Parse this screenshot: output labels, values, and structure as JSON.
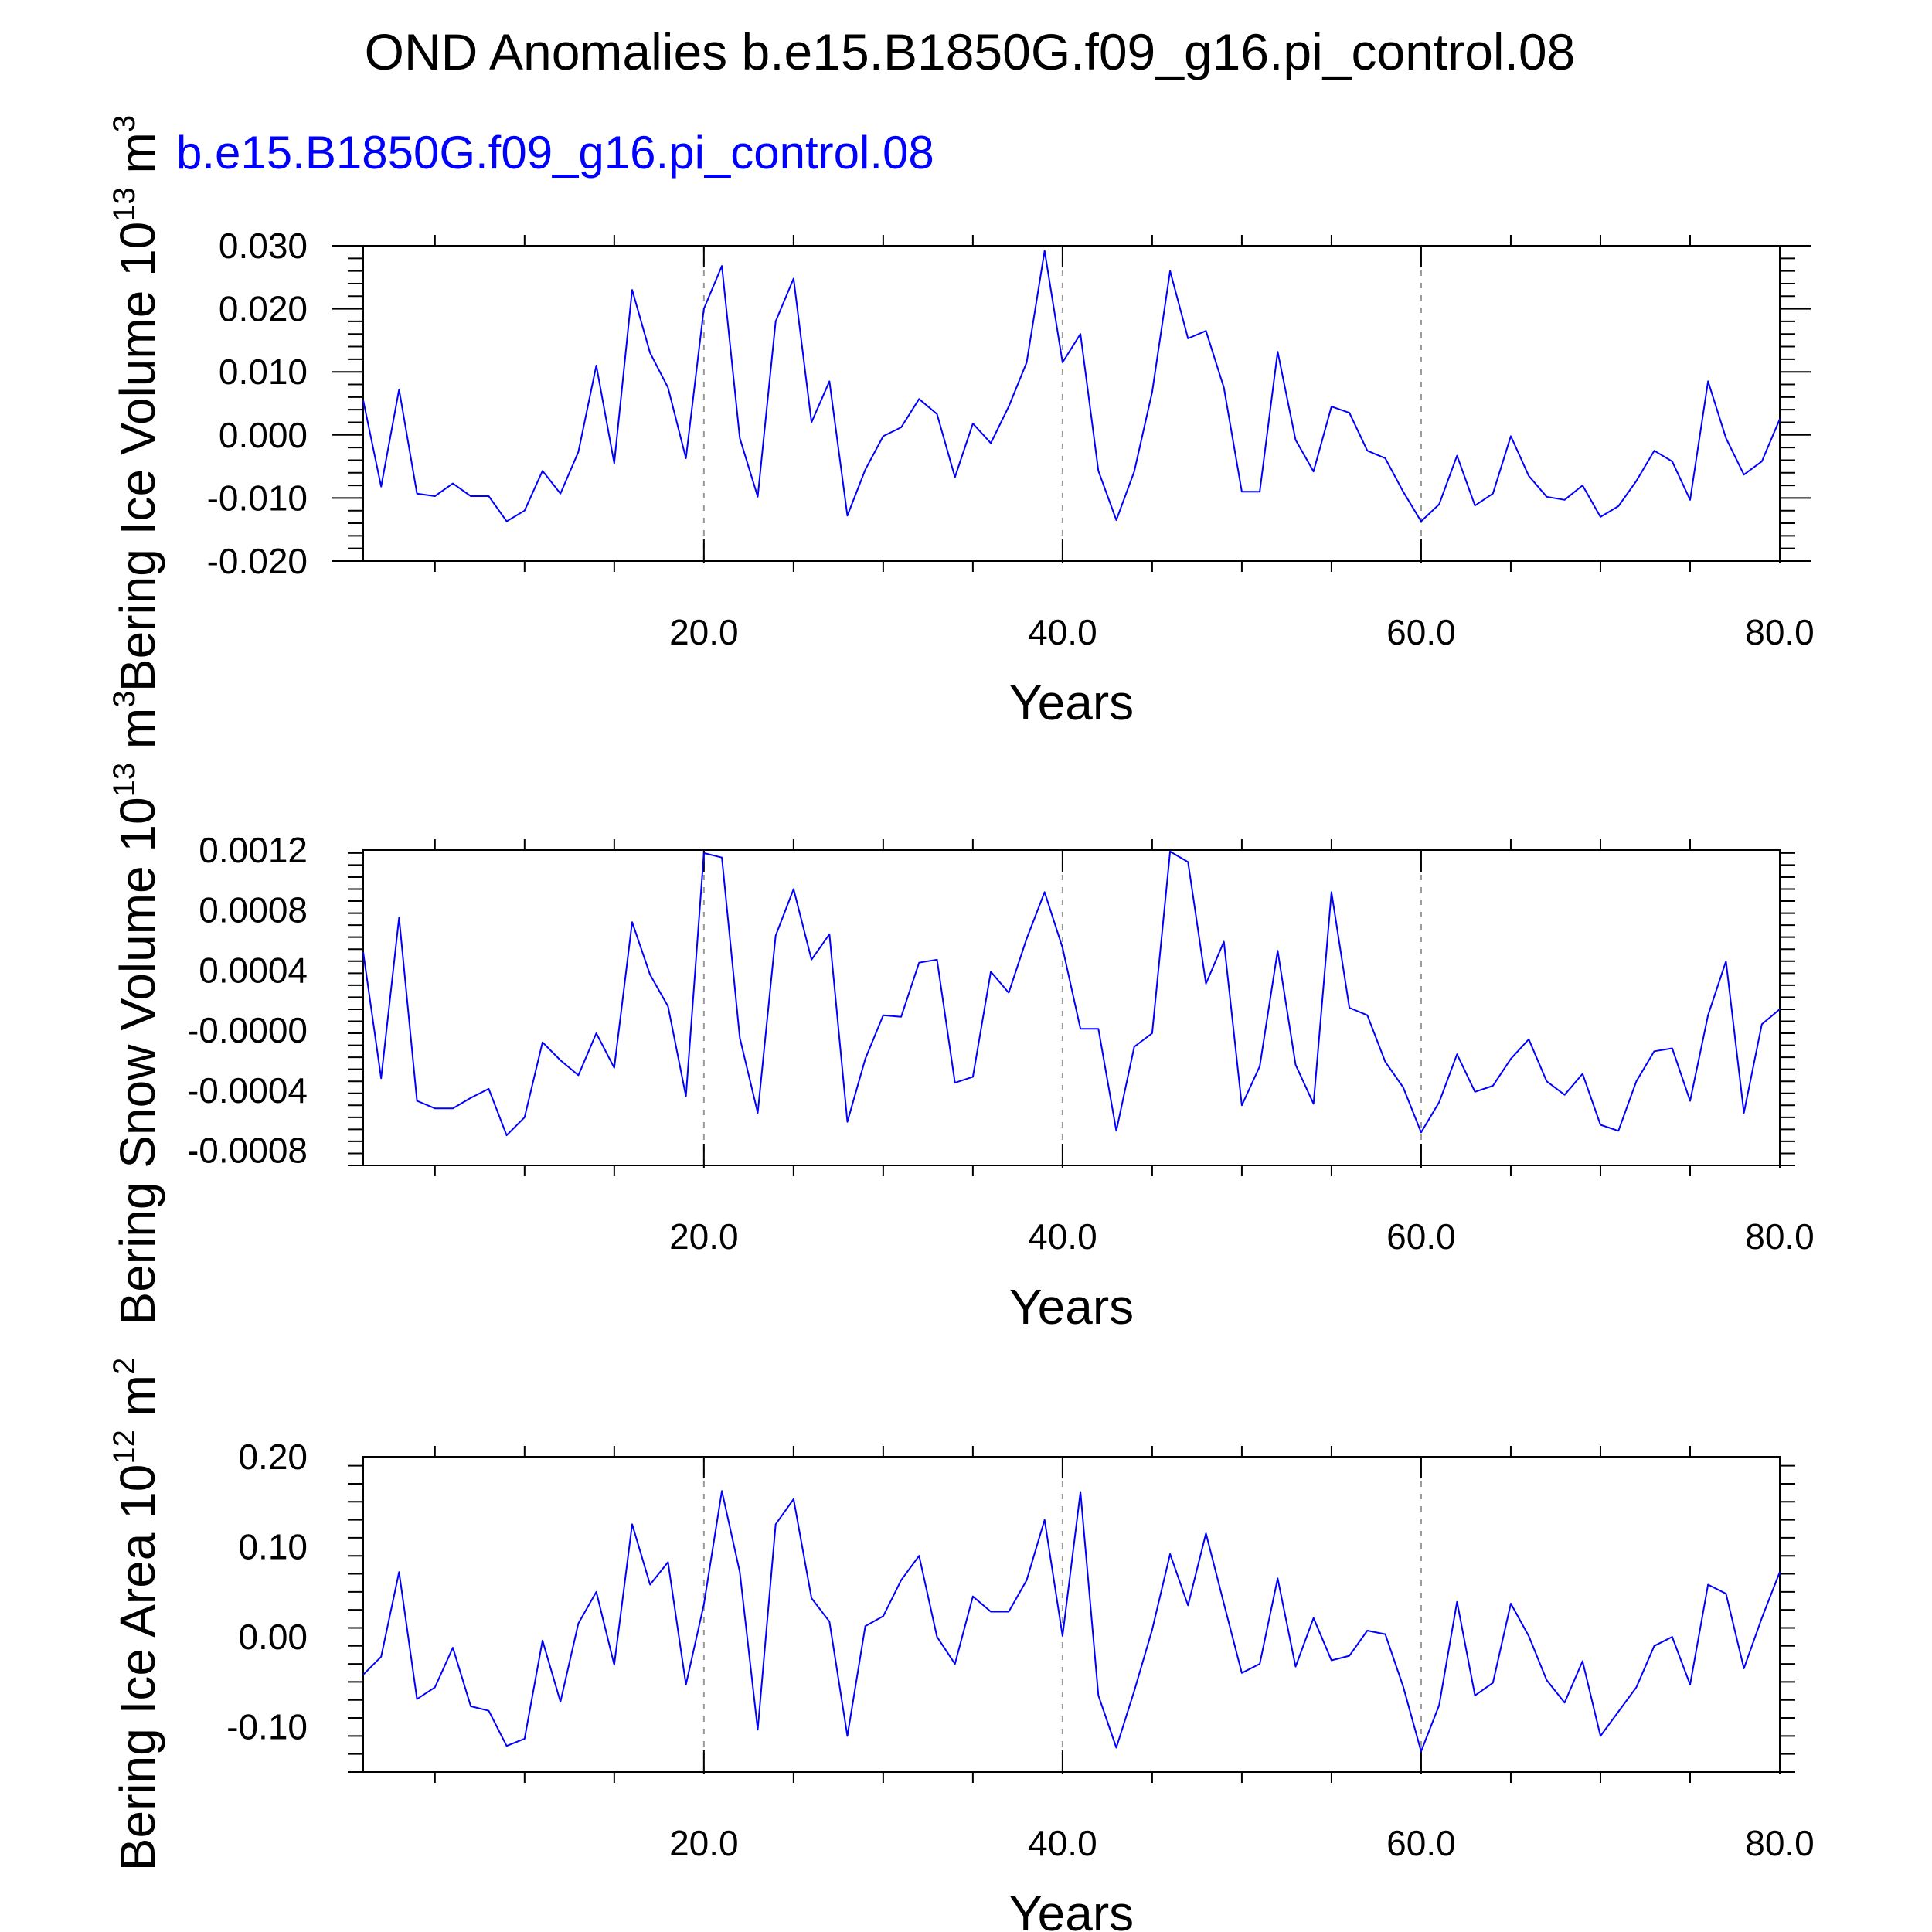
{
  "title": "OND Anomalies b.e15.B1850G.f09_g16.pi_control.08",
  "subtitle": "b.e15.B1850G.f09_g16.pi_control.08",
  "colors": {
    "series": "#0000ff",
    "axis": "#000000",
    "grid": "#999999",
    "subtitle": "#0000ff"
  },
  "chart_data": [
    {
      "type": "line",
      "title": "",
      "ylabel": "Bering Ice Volume 10",
      "ylabel_exp": "13",
      "ylabel_unit": " m",
      "ylabel_unit_exp": "3",
      "xlabel": "Years",
      "xlim": [
        1,
        80
      ],
      "ylim": [
        -0.02,
        0.03
      ],
      "xticks": [
        20,
        40,
        60,
        80
      ],
      "xtick_labels": [
        "20.0",
        "40.0",
        "60.0",
        "80.0"
      ],
      "yticks": [
        -0.02,
        -0.01,
        0.0,
        0.01,
        0.02,
        0.03
      ],
      "ytick_labels": [
        "-0.020",
        "-0.010",
        "0.000",
        "0.010",
        "0.020",
        "0.030"
      ],
      "grid_x": [
        20,
        40,
        60
      ],
      "x": [
        1,
        2,
        3,
        4,
        5,
        6,
        7,
        8,
        9,
        10,
        11,
        12,
        13,
        14,
        15,
        16,
        17,
        18,
        19,
        20,
        21,
        22,
        23,
        24,
        25,
        26,
        27,
        28,
        29,
        30,
        31,
        32,
        33,
        34,
        35,
        36,
        37,
        38,
        39,
        40,
        41,
        42,
        43,
        44,
        45,
        46,
        47,
        48,
        49,
        50,
        51,
        52,
        53,
        54,
        55,
        56,
        57,
        58,
        59,
        60,
        61,
        62,
        63,
        64,
        65,
        66,
        67,
        68,
        69,
        70,
        71,
        72,
        73,
        74,
        75,
        76,
        77,
        78,
        79,
        80
      ],
      "series": [
        {
          "values": [
            0.0055,
            -0.0082,
            0.0072,
            -0.0093,
            -0.0097,
            -0.0077,
            -0.0097,
            -0.0097,
            -0.0137,
            -0.012,
            -0.0057,
            -0.0093,
            -0.0027,
            0.011,
            -0.0045,
            0.023,
            0.013,
            0.0075,
            -0.0037,
            0.02,
            0.0268,
            -0.0005,
            -0.0098,
            0.018,
            0.0248,
            0.002,
            0.0085,
            -0.0128,
            -0.0055,
            -0.0002,
            0.0012,
            0.0057,
            0.0033,
            -0.0067,
            0.0018,
            -0.0013,
            0.0045,
            0.0115,
            0.0292,
            0.0115,
            0.016,
            -0.0057,
            -0.0135,
            -0.0058,
            0.0068,
            0.026,
            0.0153,
            0.0165,
            0.0075,
            -0.009,
            -0.009,
            0.0132,
            -0.0008,
            -0.0058,
            0.0045,
            0.0035,
            -0.0025,
            -0.0037,
            -0.009,
            -0.0137,
            -0.011,
            -0.0033,
            -0.0112,
            -0.0093,
            -0.0002,
            -0.0065,
            -0.0098,
            -0.0103,
            -0.008,
            -0.013,
            -0.0113,
            -0.0073,
            -0.0025,
            -0.0042,
            -0.0103,
            0.0085,
            -0.0005,
            -0.0063,
            -0.0042,
            0.0025
          ]
        }
      ]
    },
    {
      "type": "line",
      "title": "",
      "ylabel": "Bering Snow Volume 10",
      "ylabel_exp": "13",
      "ylabel_unit": " m",
      "ylabel_unit_exp": "3",
      "xlabel": "Years",
      "xlim": [
        1,
        80
      ],
      "ylim": [
        -0.0009,
        0.0012
      ],
      "xticks": [
        20,
        40,
        60,
        80
      ],
      "xtick_labels": [
        "20.0",
        "40.0",
        "60.0",
        "80.0"
      ],
      "yticks": [
        -0.0008,
        -0.0004,
        0.0,
        0.0004,
        0.0008,
        0.0012
      ],
      "ytick_labels": [
        "-0.0008",
        "-0.0004",
        "-0.0000",
        "0.0004",
        "0.0008",
        "0.0012"
      ],
      "grid_x": [
        20,
        40,
        60
      ],
      "x": [
        1,
        2,
        3,
        4,
        5,
        6,
        7,
        8,
        9,
        10,
        11,
        12,
        13,
        14,
        15,
        16,
        17,
        18,
        19,
        20,
        21,
        22,
        23,
        24,
        25,
        26,
        27,
        28,
        29,
        30,
        31,
        32,
        33,
        34,
        35,
        36,
        37,
        38,
        39,
        40,
        41,
        42,
        43,
        44,
        45,
        46,
        47,
        48,
        49,
        50,
        51,
        52,
        53,
        54,
        55,
        56,
        57,
        58,
        59,
        60,
        61,
        62,
        63,
        64,
        65,
        66,
        67,
        68,
        69,
        70,
        71,
        72,
        73,
        74,
        75,
        76,
        77,
        78,
        79,
        80
      ],
      "series": [
        {
          "values": [
            0.00052,
            -0.00032,
            0.00075,
            -0.00047,
            -0.00052,
            -0.00052,
            -0.00045,
            -0.00039,
            -0.0007,
            -0.00058,
            -8e-05,
            -0.0002,
            -0.0003,
            -2e-05,
            -0.00025,
            0.00072,
            0.00037,
            0.00016,
            -0.00044,
            0.00118,
            0.00115,
            -5e-05,
            -0.00055,
            0.00063,
            0.00094,
            0.00047,
            0.00064,
            -0.00061,
            -0.00019,
            0.0001,
            9e-05,
            0.00045,
            0.00047,
            -0.00035,
            -0.00031,
            0.00039,
            0.00025,
            0.00061,
            0.00092,
            0.00055,
            1e-05,
            1e-05,
            -0.00067,
            -0.00011,
            -2e-05,
            0.00119,
            0.00112,
            0.00031,
            0.00059,
            -0.0005,
            -0.00024,
            0.00053,
            -0.00023,
            -0.00049,
            0.00092,
            0.00015,
            0.0001,
            -0.00021,
            -0.00038,
            -0.00068,
            -0.00048,
            -0.00016,
            -0.00041,
            -0.00037,
            -0.00019,
            -6e-05,
            -0.00034,
            -0.00043,
            -0.00029,
            -0.00063,
            -0.00067,
            -0.00034,
            -0.00014,
            -0.00012,
            -0.00047,
            0.0001,
            0.00046,
            -0.00055,
            4e-05,
            0.00014
          ]
        }
      ]
    },
    {
      "type": "line",
      "title": "",
      "ylabel": "Bering Ice Area 10",
      "ylabel_exp": "12",
      "ylabel_unit": " m",
      "ylabel_unit_exp": "2",
      "xlabel": "Years",
      "xlim": [
        1,
        80
      ],
      "ylim": [
        -0.15,
        0.2
      ],
      "xticks": [
        20,
        40,
        60,
        80
      ],
      "xtick_labels": [
        "20.0",
        "40.0",
        "60.0",
        "80.0"
      ],
      "yticks": [
        -0.1,
        0.0,
        0.1,
        0.2
      ],
      "ytick_labels": [
        "-0.10",
        "0.00",
        "0.10",
        "0.20"
      ],
      "grid_x": [
        20,
        40,
        60
      ],
      "x": [
        1,
        2,
        3,
        4,
        5,
        6,
        7,
        8,
        9,
        10,
        11,
        12,
        13,
        14,
        15,
        16,
        17,
        18,
        19,
        20,
        21,
        22,
        23,
        24,
        25,
        26,
        27,
        28,
        29,
        30,
        31,
        32,
        33,
        34,
        35,
        36,
        37,
        38,
        39,
        40,
        41,
        42,
        43,
        44,
        45,
        46,
        47,
        48,
        49,
        50,
        51,
        52,
        53,
        54,
        55,
        56,
        57,
        58,
        59,
        60,
        61,
        62,
        63,
        64,
        65,
        66,
        67,
        68,
        69,
        70,
        71,
        72,
        73,
        74,
        75,
        76,
        77,
        78,
        79,
        80
      ],
      "series": [
        {
          "values": [
            -0.042,
            -0.022,
            0.072,
            -0.069,
            -0.056,
            -0.012,
            -0.077,
            -0.082,
            -0.121,
            -0.113,
            -0.004,
            -0.072,
            0.015,
            0.05,
            -0.031,
            0.125,
            0.058,
            0.083,
            -0.053,
            0.036,
            0.162,
            0.072,
            -0.103,
            0.125,
            0.153,
            0.043,
            0.017,
            -0.11,
            0.012,
            0.023,
            0.063,
            0.09,
            0.0,
            -0.03,
            0.045,
            0.028,
            0.028,
            0.063,
            0.13,
            0.001,
            0.161,
            -0.065,
            -0.123,
            -0.06,
            0.008,
            0.092,
            0.035,
            0.115,
            0.037,
            -0.04,
            -0.03,
            0.065,
            -0.033,
            0.021,
            -0.026,
            -0.021,
            0.007,
            0.003,
            -0.055,
            -0.127,
            -0.076,
            0.039,
            -0.065,
            -0.051,
            0.037,
            0.001,
            -0.048,
            -0.073,
            -0.027,
            -0.11,
            -0.083,
            -0.056,
            -0.01,
            0.0,
            -0.053,
            0.058,
            0.048,
            -0.035,
            0.021,
            0.072
          ]
        }
      ]
    }
  ]
}
